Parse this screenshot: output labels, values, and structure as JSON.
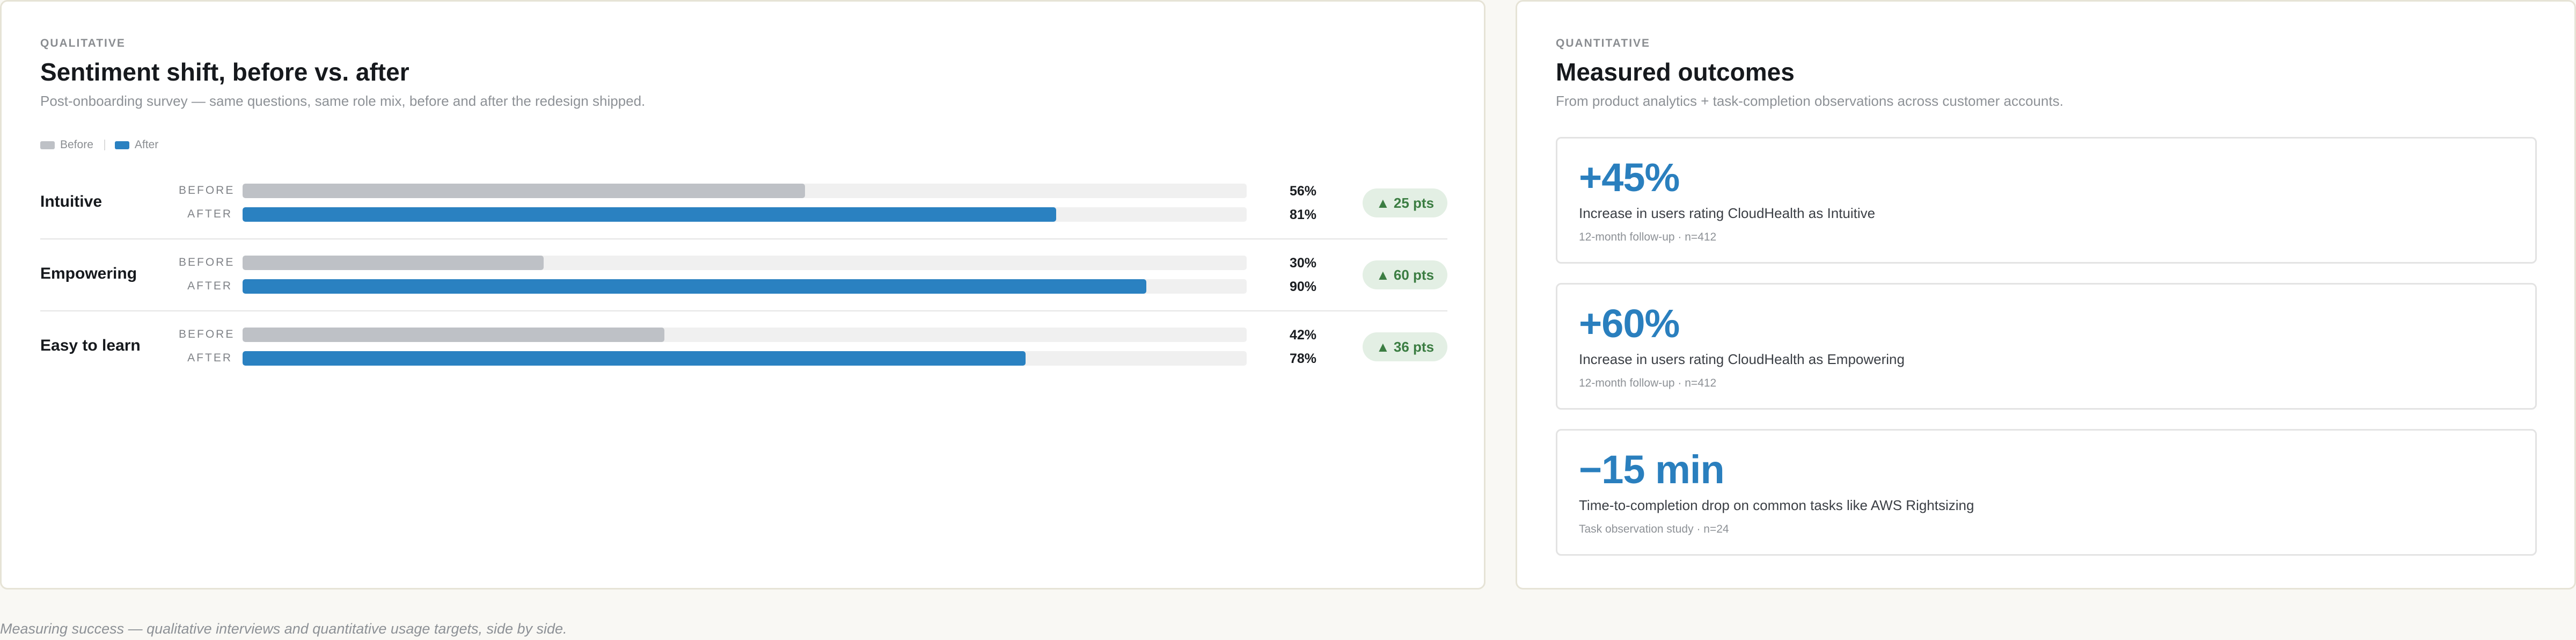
{
  "qualitative": {
    "eyebrow": "QUALITATIVE",
    "title": "Sentiment shift, before vs. after",
    "subtitle": "Post-onboarding survey — same questions, same role mix, before and after the redesign shipped.",
    "legend": [
      {
        "label": "Before",
        "color": "#bec1c6"
      },
      {
        "label": "After",
        "color": "#2a81c1"
      }
    ],
    "before_tag": "BEFORE",
    "after_tag": "AFTER",
    "rows": [
      {
        "label": "Intuitive",
        "before_pct": "56%",
        "after_pct": "81%",
        "delta": "▲ 25 pts"
      },
      {
        "label": "Empowering",
        "before_pct": "30%",
        "after_pct": "90%",
        "delta": "▲ 60 pts"
      },
      {
        "label": "Easy to learn",
        "before_pct": "42%",
        "after_pct": "78%",
        "delta": "▲ 36 pts"
      }
    ]
  },
  "chart_data": {
    "type": "bar",
    "orientation": "horizontal",
    "title": "Sentiment shift, before vs. after",
    "categories": [
      "Intuitive",
      "Empowering",
      "Easy to learn"
    ],
    "series": [
      {
        "name": "Before",
        "values": [
          56,
          30,
          42
        ],
        "color": "#bec1c6"
      },
      {
        "name": "After",
        "values": [
          81,
          90,
          78
        ],
        "color": "#2a81c1"
      }
    ],
    "xlim": [
      0,
      100
    ],
    "legend_position": "top-left",
    "grid": false
  },
  "quantitative": {
    "eyebrow": "QUANTITATIVE",
    "title": "Measured outcomes",
    "subtitle": "From product analytics + task-completion observations across customer accounts.",
    "metrics": [
      {
        "value": "+45%",
        "description": "Increase in users rating CloudHealth as Intuitive",
        "note": "12-month follow-up · n=412"
      },
      {
        "value": "+60%",
        "description": "Increase in users rating CloudHealth as Empowering",
        "note": "12-month follow-up · n=412"
      },
      {
        "value": "−15 min",
        "description": "Time-to-completion drop on common tasks like AWS Rightsizing",
        "note": "Task observation study · n=24"
      }
    ]
  },
  "caption": "Measuring success — qualitative interviews and quantitative usage targets, side by side."
}
